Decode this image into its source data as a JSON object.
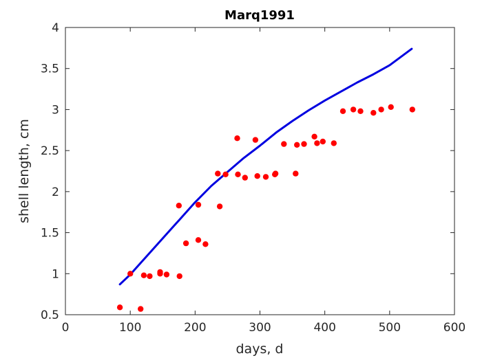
{
  "chart_data": {
    "type": "scatter",
    "title": "Marq1991",
    "xlabel": "days, d",
    "ylabel": "shell length, cm",
    "xlim": [
      0,
      600
    ],
    "ylim": [
      0.5,
      4
    ],
    "xticks": [
      "0",
      "100",
      "200",
      "300",
      "400",
      "500",
      "600"
    ],
    "yticks": [
      "0.5",
      "1",
      "1.5",
      "2",
      "2.5",
      "3",
      "3.5",
      "4"
    ],
    "grid": false,
    "colors": {
      "points": "#ff0000",
      "curve": "#0000e0",
      "axes": "#262626"
    },
    "series": [
      {
        "type": "scatter",
        "points": [
          [
            84,
            0.59
          ],
          [
            100,
            1.0
          ],
          [
            116,
            0.57
          ],
          [
            121,
            0.98
          ],
          [
            130,
            0.97
          ],
          [
            146,
            1.0
          ],
          [
            146,
            1.02
          ],
          [
            156,
            0.99
          ],
          [
            175,
            1.83
          ],
          [
            176,
            0.97
          ],
          [
            186,
            1.37
          ],
          [
            205,
            1.84
          ],
          [
            205,
            1.41
          ],
          [
            216,
            1.36
          ],
          [
            235,
            2.22
          ],
          [
            238,
            1.82
          ],
          [
            247,
            2.21
          ],
          [
            265,
            2.65
          ],
          [
            266,
            2.21
          ],
          [
            277,
            2.17
          ],
          [
            293,
            2.63
          ],
          [
            296,
            2.19
          ],
          [
            309,
            2.18
          ],
          [
            323,
            2.21
          ],
          [
            324,
            2.22
          ],
          [
            337,
            2.58
          ],
          [
            355,
            2.22
          ],
          [
            357,
            2.57
          ],
          [
            368,
            2.58
          ],
          [
            384,
            2.67
          ],
          [
            388,
            2.59
          ],
          [
            397,
            2.61
          ],
          [
            414,
            2.59
          ],
          [
            428,
            2.98
          ],
          [
            444,
            3.0
          ],
          [
            455,
            2.98
          ],
          [
            475,
            2.96
          ],
          [
            487,
            3.0
          ],
          [
            502,
            3.03
          ],
          [
            535,
            3.0
          ]
        ]
      },
      {
        "type": "line",
        "points": [
          [
            84,
            0.87
          ],
          [
            100,
            0.99
          ],
          [
            125,
            1.21
          ],
          [
            150,
            1.43
          ],
          [
            175,
            1.65
          ],
          [
            200,
            1.87
          ],
          [
            225,
            2.07
          ],
          [
            250,
            2.24
          ],
          [
            275,
            2.41
          ],
          [
            300,
            2.56
          ],
          [
            325,
            2.72
          ],
          [
            350,
            2.86
          ],
          [
            375,
            2.99
          ],
          [
            400,
            3.11
          ],
          [
            425,
            3.22
          ],
          [
            450,
            3.33
          ],
          [
            475,
            3.43
          ],
          [
            500,
            3.54
          ],
          [
            534,
            3.74
          ]
        ]
      }
    ]
  }
}
